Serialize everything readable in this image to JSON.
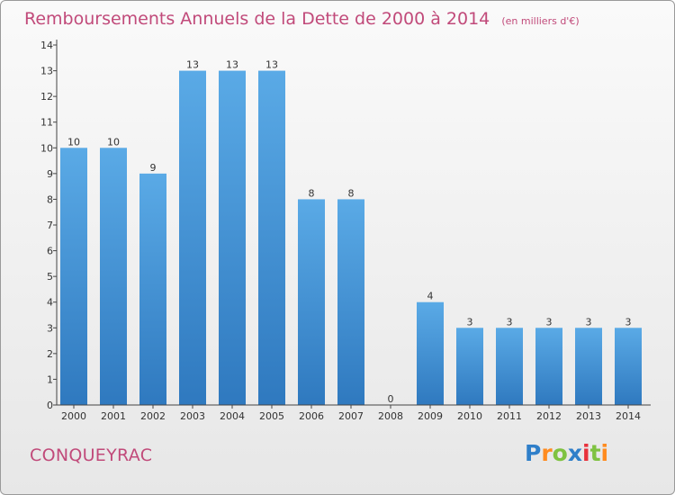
{
  "header": {
    "title": "Remboursements Annuels de la Dette de 2000 à 2014",
    "subtitle": "(en milliers d'€)"
  },
  "footer": {
    "commune": "CONQUEYRAC",
    "logo": "Proxiti"
  },
  "colors": {
    "title": "#c14a7a",
    "bar_top": "#5aaae6",
    "bar_bottom": "#2f79bf"
  },
  "chart_data": {
    "type": "bar",
    "title": "Remboursements Annuels de la Dette de 2000 à 2014",
    "subtitle": "(en milliers d'€)",
    "xlabel": "",
    "ylabel": "",
    "categories": [
      "2000",
      "2001",
      "2002",
      "2003",
      "2004",
      "2005",
      "2006",
      "2007",
      "2008",
      "2009",
      "2010",
      "2011",
      "2012",
      "2013",
      "2014"
    ],
    "values": [
      10,
      10,
      9,
      13,
      13,
      13,
      8,
      8,
      0,
      4,
      3,
      3,
      3,
      3,
      3
    ],
    "yticks": [
      "0",
      "1",
      "2",
      "3",
      "4",
      "5",
      "6",
      "7",
      "8",
      "9",
      "10",
      "11",
      "12",
      "13",
      "14"
    ],
    "ylim": [
      0,
      14
    ],
    "grid": false,
    "legend": "none"
  }
}
